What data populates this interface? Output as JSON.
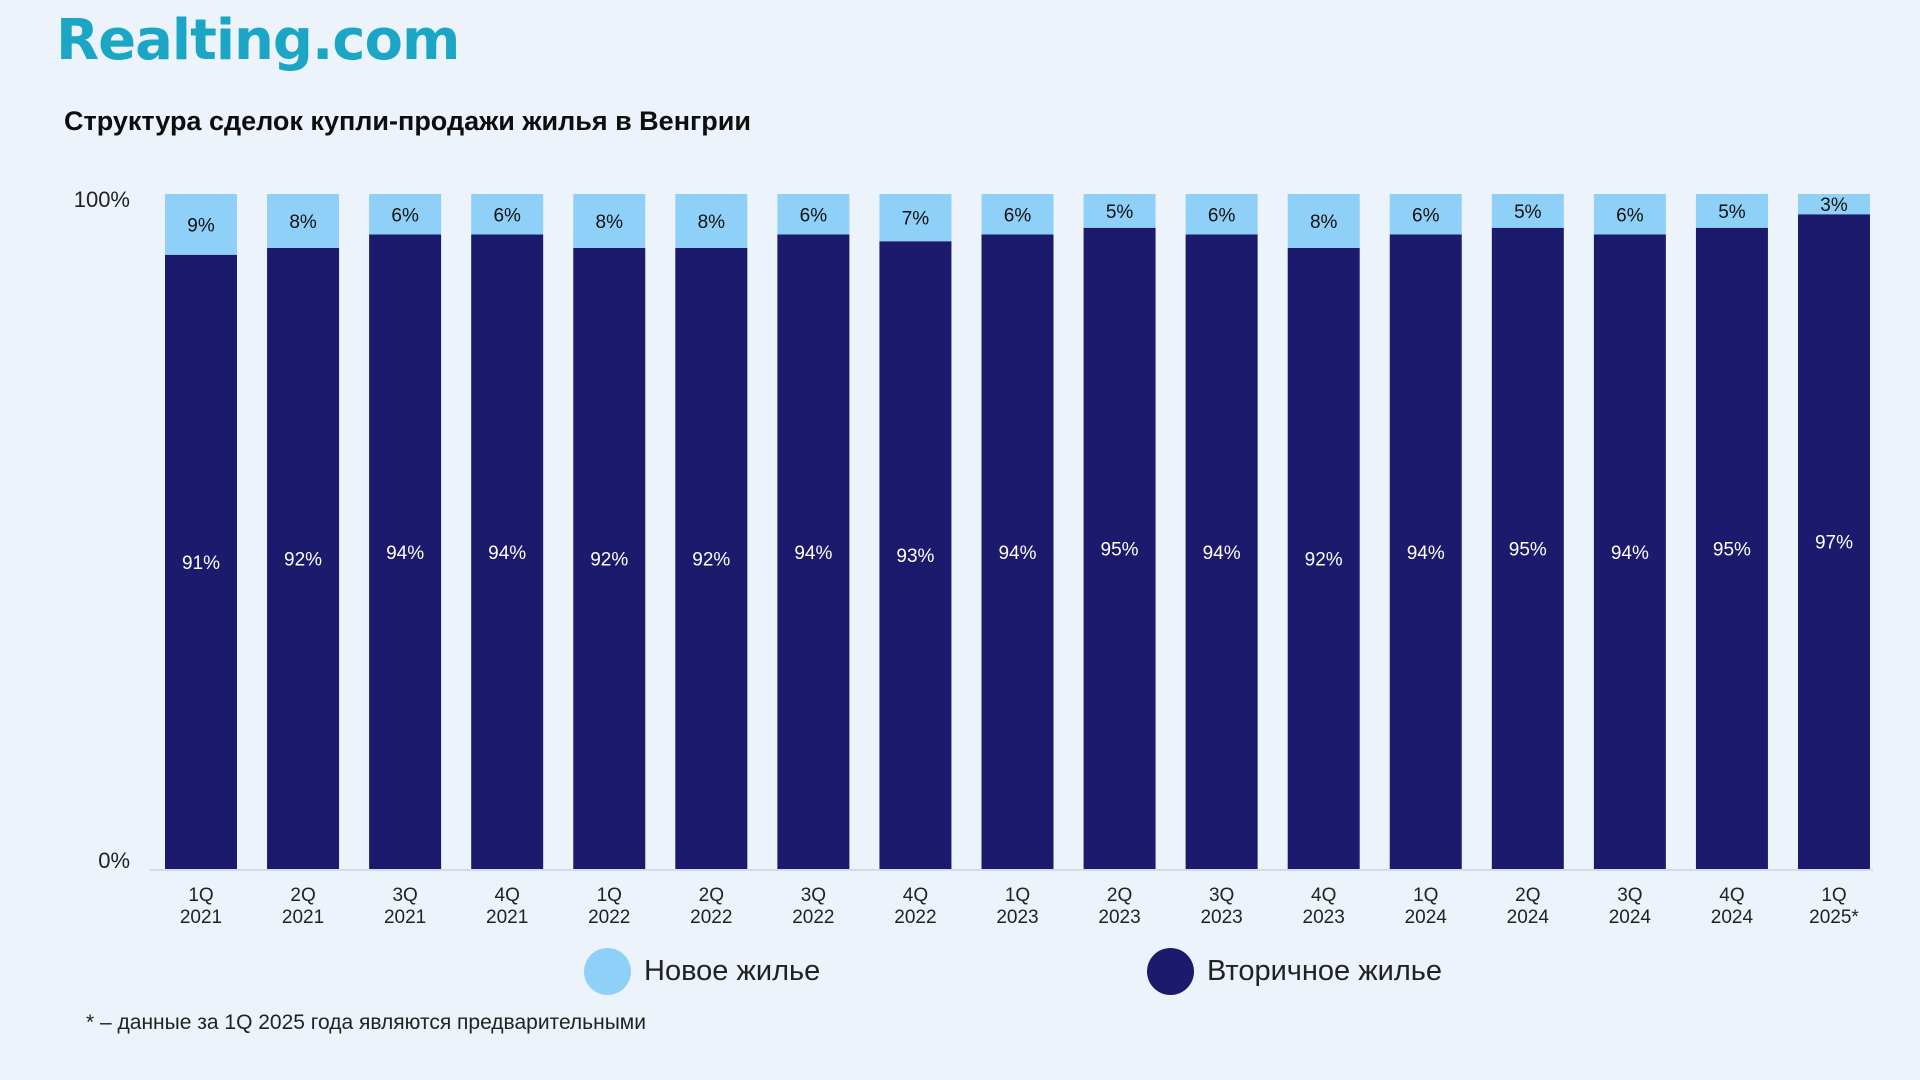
{
  "brand": {
    "logo_text": "Realting.com",
    "logo_color": "#1aa6c4"
  },
  "chart_data": {
    "type": "bar",
    "stacked": true,
    "title": "Структура сделок купли-продажи жилья в Венгрии",
    "categories": [
      "1Q 2021",
      "2Q 2021",
      "3Q 2021",
      "4Q 2021",
      "1Q 2022",
      "2Q 2022",
      "3Q 2022",
      "4Q 2022",
      "1Q 2023",
      "2Q 2023",
      "3Q 2023",
      "4Q 2023",
      "1Q 2024",
      "2Q 2024",
      "3Q 2024",
      "4Q 2024",
      "1Q 2025*"
    ],
    "series": [
      {
        "name": "Вторичное жилье",
        "color": "#1b1a6c",
        "label_color": "#ffffff",
        "values": [
          91,
          92,
          94,
          94,
          92,
          92,
          94,
          93,
          94,
          95,
          94,
          92,
          94,
          95,
          94,
          95,
          97
        ]
      },
      {
        "name": "Новое жилье",
        "color": "#8fd0f8",
        "label_color": "#111111",
        "values": [
          9,
          8,
          6,
          6,
          8,
          8,
          6,
          7,
          6,
          5,
          6,
          8,
          6,
          5,
          6,
          5,
          3
        ]
      }
    ],
    "y_ticks": [
      "0%",
      "100%"
    ],
    "ylim": [
      0,
      100
    ],
    "value_suffix": "%",
    "xlabel": "",
    "ylabel": "",
    "legend_position": "bottom",
    "grid": false
  },
  "legend": {
    "new": "Новое жилье",
    "secondary": "Вторичное жилье"
  },
  "footnote": "* – данные за 1Q 2025 года являются предварительными"
}
